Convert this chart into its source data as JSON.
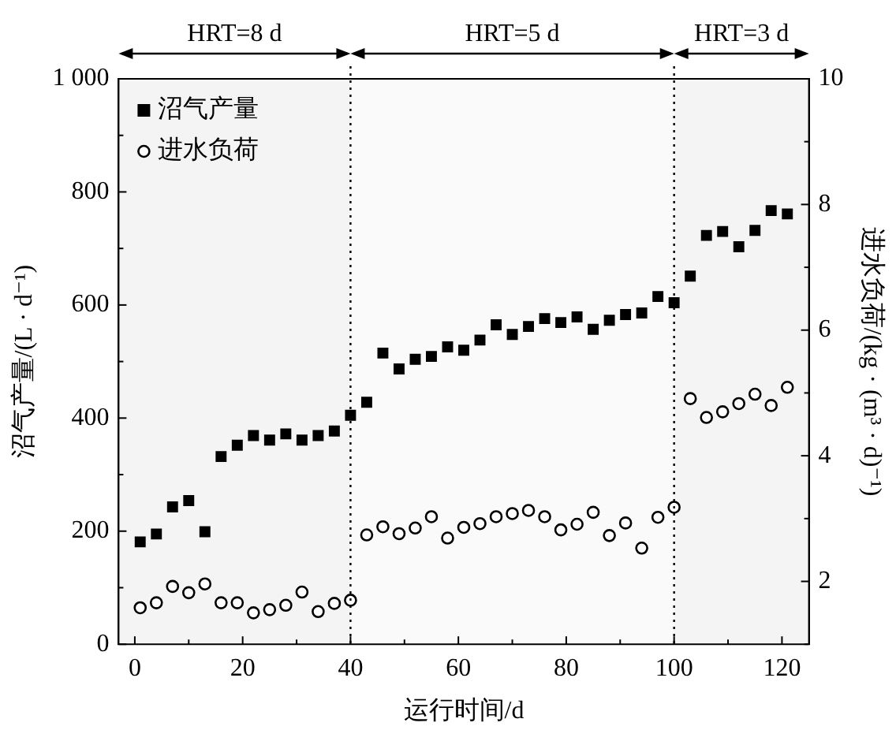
{
  "chart_data": {
    "type": "scatter",
    "xlabel": "运行时间/d",
    "ylabel": "沼气产量/(L · d⁻¹)",
    "y2label": "进水负荷/(kg · (m³ · d)⁻¹)",
    "xlim": [
      -3,
      125
    ],
    "xticks": [
      0,
      {
        "value": 10,
        "label": null
      },
      20,
      {
        "value": 30,
        "label": null
      },
      40,
      {
        "value": 50,
        "label": null
      },
      60,
      {
        "value": 70,
        "label": null
      },
      80,
      {
        "value": 90,
        "label": null
      },
      100,
      {
        "value": 110,
        "label": null
      },
      120
    ],
    "ylim": [
      0,
      1000
    ],
    "yticks": [
      0,
      {
        "value": 100,
        "label": null
      },
      200,
      {
        "value": 300,
        "label": null
      },
      400,
      {
        "value": 500,
        "label": null
      },
      600,
      {
        "value": 700,
        "label": null
      },
      800,
      {
        "value": 900,
        "label": null
      },
      {
        "value": 1000,
        "label": "1 000"
      }
    ],
    "y2lim": [
      1,
      10
    ],
    "y2ticks": [
      {
        "value": 1,
        "label": null
      },
      2,
      {
        "value": 3,
        "label": null
      },
      4,
      {
        "value": 5,
        "label": null
      },
      6,
      {
        "value": 7,
        "label": null
      },
      8,
      {
        "value": 9,
        "label": null
      },
      10
    ],
    "legend": "top left",
    "grid": false,
    "series": [
      {
        "name": "沼气产量",
        "color": "#000000",
        "marker": "square",
        "x": [
          1,
          4,
          7,
          10,
          13,
          16,
          19,
          22,
          25,
          28,
          31,
          34,
          37,
          40,
          43,
          46,
          49,
          52,
          55,
          58,
          61,
          64,
          67,
          70,
          73,
          76,
          79,
          82,
          85,
          88,
          91,
          94,
          97,
          100,
          103,
          106,
          109,
          112,
          115,
          118,
          121
        ],
        "values": [
          181,
          195,
          243,
          254,
          199,
          332,
          352,
          369,
          361,
          372,
          361,
          369,
          377,
          405,
          428,
          515,
          487,
          504,
          509,
          526,
          520,
          538,
          565,
          548,
          562,
          576,
          569,
          579,
          557,
          573,
          583,
          586,
          615,
          604,
          651,
          723,
          730,
          703,
          732,
          767,
          761
        ]
      },
      {
        "name": "进水负荷",
        "color": "#000000",
        "marker": "circle",
        "axis": "y2",
        "x": [
          1,
          4,
          7,
          10,
          13,
          16,
          19,
          22,
          25,
          28,
          31,
          34,
          37,
          40,
          43,
          46,
          49,
          52,
          55,
          58,
          61,
          64,
          67,
          70,
          73,
          76,
          79,
          82,
          85,
          88,
          91,
          94,
          97,
          100,
          103,
          106,
          109,
          112,
          115,
          118,
          121
        ],
        "values": [
          1.58,
          1.66,
          1.92,
          1.82,
          1.96,
          1.66,
          1.66,
          1.5,
          1.55,
          1.62,
          1.83,
          1.52,
          1.65,
          1.7,
          2.74,
          2.87,
          2.76,
          2.85,
          3.03,
          2.69,
          2.86,
          2.92,
          3.03,
          3.08,
          3.13,
          3.03,
          2.82,
          2.91,
          3.1,
          2.73,
          2.93,
          2.53,
          3.02,
          3.18,
          4.91,
          4.61,
          4.7,
          4.83,
          4.98,
          4.8,
          5.09
        ]
      }
    ],
    "ref_lines": [
      {
        "axis": "x",
        "value": 40,
        "line_style": "dotted",
        "color": "#000000"
      },
      {
        "axis": "x",
        "value": 100,
        "line_style": "dotted",
        "color": "#000000"
      }
    ],
    "bands": [
      {
        "axis": "x",
        "from": -3,
        "to": 40,
        "label": "HRT=8 d",
        "color": "#f4f4f4"
      },
      {
        "axis": "x",
        "from": 40,
        "to": 100,
        "label": "HRT=5 d",
        "color": "#fafafa"
      },
      {
        "axis": "x",
        "from": 100,
        "to": 125,
        "label": "HRT=3 d",
        "color": "#f4f4f4"
      }
    ]
  }
}
